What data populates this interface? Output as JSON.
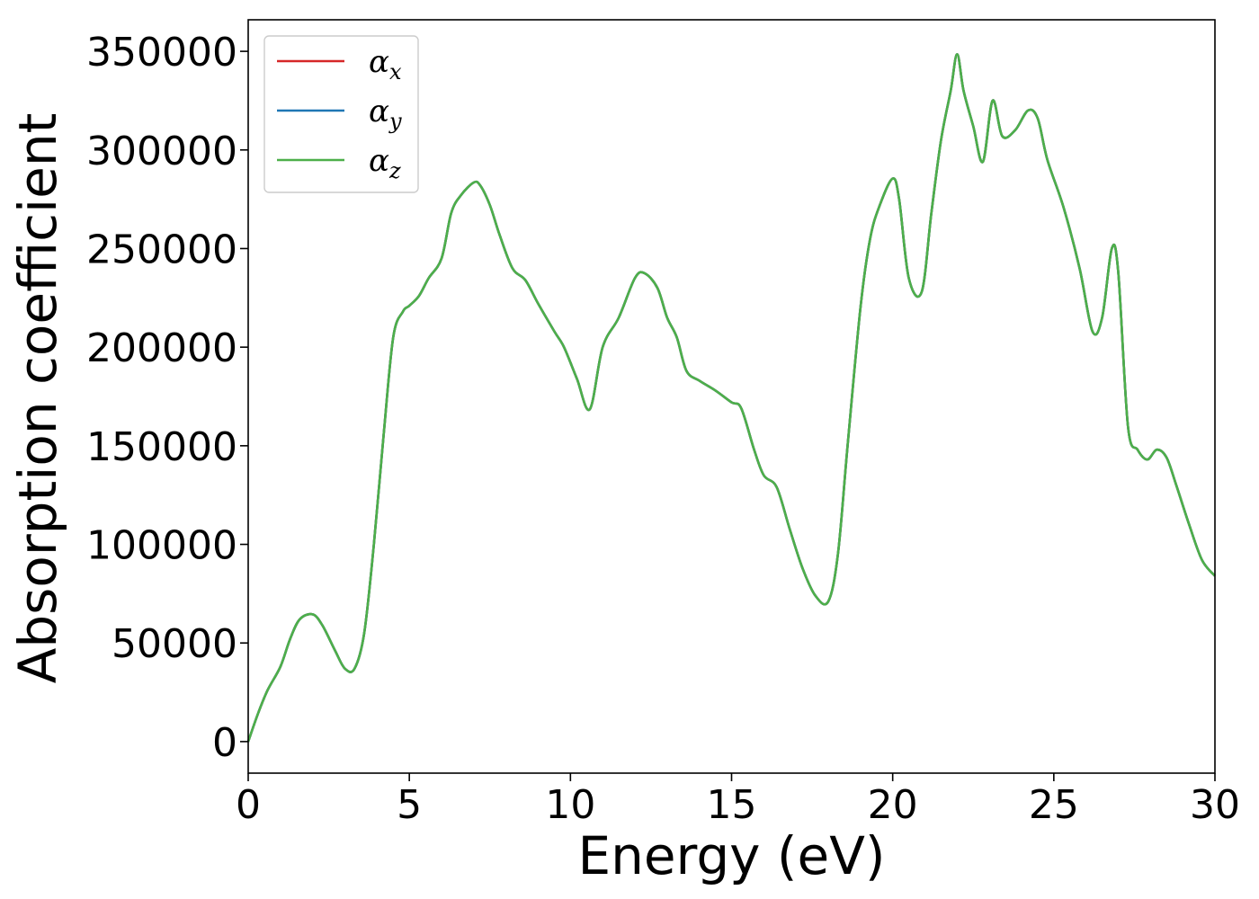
{
  "chart_data": {
    "type": "line",
    "xlabel": "Energy (eV)",
    "ylabel": "Absorption coefficient",
    "xlim": [
      0,
      30
    ],
    "ylim": [
      -16000,
      366000
    ],
    "xticks": [
      0,
      5,
      10,
      15,
      20,
      25,
      30
    ],
    "yticks": [
      0,
      50000,
      100000,
      150000,
      200000,
      250000,
      300000,
      350000
    ],
    "xtick_labels": [
      "0",
      "5",
      "10",
      "15",
      "20",
      "25",
      "30"
    ],
    "ytick_labels": [
      "0",
      "50000",
      "100000",
      "150000",
      "200000",
      "250000",
      "300000",
      "350000"
    ],
    "grid": false,
    "legend_position": "top-left",
    "legend": [
      {
        "base": "α",
        "sub": "x",
        "color": "#d62728"
      },
      {
        "base": "α",
        "sub": "y",
        "color": "#1f77b4"
      },
      {
        "base": "α",
        "sub": "z",
        "color": "#4daf4a"
      }
    ],
    "x": [
      0,
      0.3,
      0.6,
      1.0,
      1.3,
      1.6,
      2.0,
      2.3,
      2.7,
      3.0,
      3.3,
      3.6,
      3.9,
      4.2,
      4.5,
      4.8,
      5.0,
      5.3,
      5.6,
      6.0,
      6.3,
      6.6,
      7.0,
      7.2,
      7.5,
      7.8,
      8.2,
      8.6,
      9.0,
      9.5,
      9.8,
      10.2,
      10.6,
      11.0,
      11.5,
      12.0,
      12.3,
      12.7,
      13.0,
      13.3,
      13.6,
      14.0,
      14.5,
      15.0,
      15.3,
      15.7,
      16.0,
      16.4,
      16.8,
      17.2,
      17.6,
      18.0,
      18.3,
      18.6,
      19.0,
      19.3,
      19.6,
      20.0,
      20.2,
      20.5,
      20.9,
      21.2,
      21.5,
      21.8,
      22.0,
      22.2,
      22.5,
      22.8,
      23.1,
      23.4,
      23.8,
      24.2,
      24.5,
      24.8,
      25.3,
      25.8,
      26.2,
      26.5,
      26.8,
      27.0,
      27.3,
      27.6,
      27.9,
      28.2,
      28.5,
      28.8,
      29.2,
      29.6,
      30.0
    ],
    "series": [
      {
        "name": "αx",
        "color": "#d62728",
        "values": [
          0,
          14000,
          26000,
          38000,
          52000,
          62000,
          64500,
          59000,
          46000,
          37000,
          37000,
          55000,
          100000,
          155000,
          205000,
          218000,
          221000,
          226000,
          235000,
          245000,
          268000,
          277000,
          283500,
          282000,
          272000,
          257000,
          240000,
          234000,
          222000,
          208000,
          200000,
          184000,
          168500,
          200000,
          215000,
          235000,
          237500,
          230000,
          215000,
          205000,
          188000,
          183000,
          178000,
          172000,
          169000,
          148000,
          135000,
          129000,
          108000,
          88000,
          74000,
          71000,
          95000,
          150000,
          220000,
          255000,
          272000,
          285500,
          275000,
          235000,
          228000,
          268000,
          305000,
          330000,
          348500,
          330000,
          312000,
          294000,
          325000,
          307000,
          310000,
          320000,
          316000,
          295000,
          271000,
          240000,
          208000,
          215000,
          250000,
          238000,
          160000,
          148000,
          143000,
          148000,
          144000,
          130000,
          110000,
          92000,
          84000
        ]
      },
      {
        "name": "αy",
        "color": "#1f77b4",
        "values": [
          0,
          14000,
          26000,
          38000,
          52000,
          62000,
          64500,
          59000,
          46000,
          37000,
          37000,
          55000,
          100000,
          155000,
          205000,
          218000,
          221000,
          226000,
          235000,
          245000,
          268000,
          277000,
          283500,
          282000,
          272000,
          257000,
          240000,
          234000,
          222000,
          208000,
          200000,
          184000,
          168500,
          200000,
          215000,
          235000,
          237500,
          230000,
          215000,
          205000,
          188000,
          183000,
          178000,
          172000,
          169000,
          148000,
          135000,
          129000,
          108000,
          88000,
          74000,
          71000,
          95000,
          150000,
          220000,
          255000,
          272000,
          285500,
          275000,
          235000,
          228000,
          268000,
          305000,
          330000,
          348500,
          330000,
          312000,
          294000,
          325000,
          307000,
          310000,
          320000,
          316000,
          295000,
          271000,
          240000,
          208000,
          215000,
          250000,
          238000,
          160000,
          148000,
          143000,
          148000,
          144000,
          130000,
          110000,
          92000,
          84000
        ]
      },
      {
        "name": "αz",
        "color": "#4daf4a",
        "values": [
          0,
          14000,
          26000,
          38000,
          52000,
          62000,
          64500,
          59000,
          46000,
          37000,
          37000,
          55000,
          100000,
          155000,
          205000,
          218000,
          221000,
          226000,
          235000,
          245000,
          268000,
          277000,
          283500,
          282000,
          272000,
          257000,
          240000,
          234000,
          222000,
          208000,
          200000,
          184000,
          168500,
          200000,
          215000,
          235000,
          237500,
          230000,
          215000,
          205000,
          188000,
          183000,
          178000,
          172000,
          169000,
          148000,
          135000,
          129000,
          108000,
          88000,
          74000,
          71000,
          95000,
          150000,
          220000,
          255000,
          272000,
          285500,
          275000,
          235000,
          228000,
          268000,
          305000,
          330000,
          348500,
          330000,
          312000,
          294000,
          325000,
          307000,
          310000,
          320000,
          316000,
          295000,
          271000,
          240000,
          208000,
          215000,
          250000,
          238000,
          160000,
          148000,
          143000,
          148000,
          144000,
          130000,
          110000,
          92000,
          84000
        ]
      }
    ]
  }
}
